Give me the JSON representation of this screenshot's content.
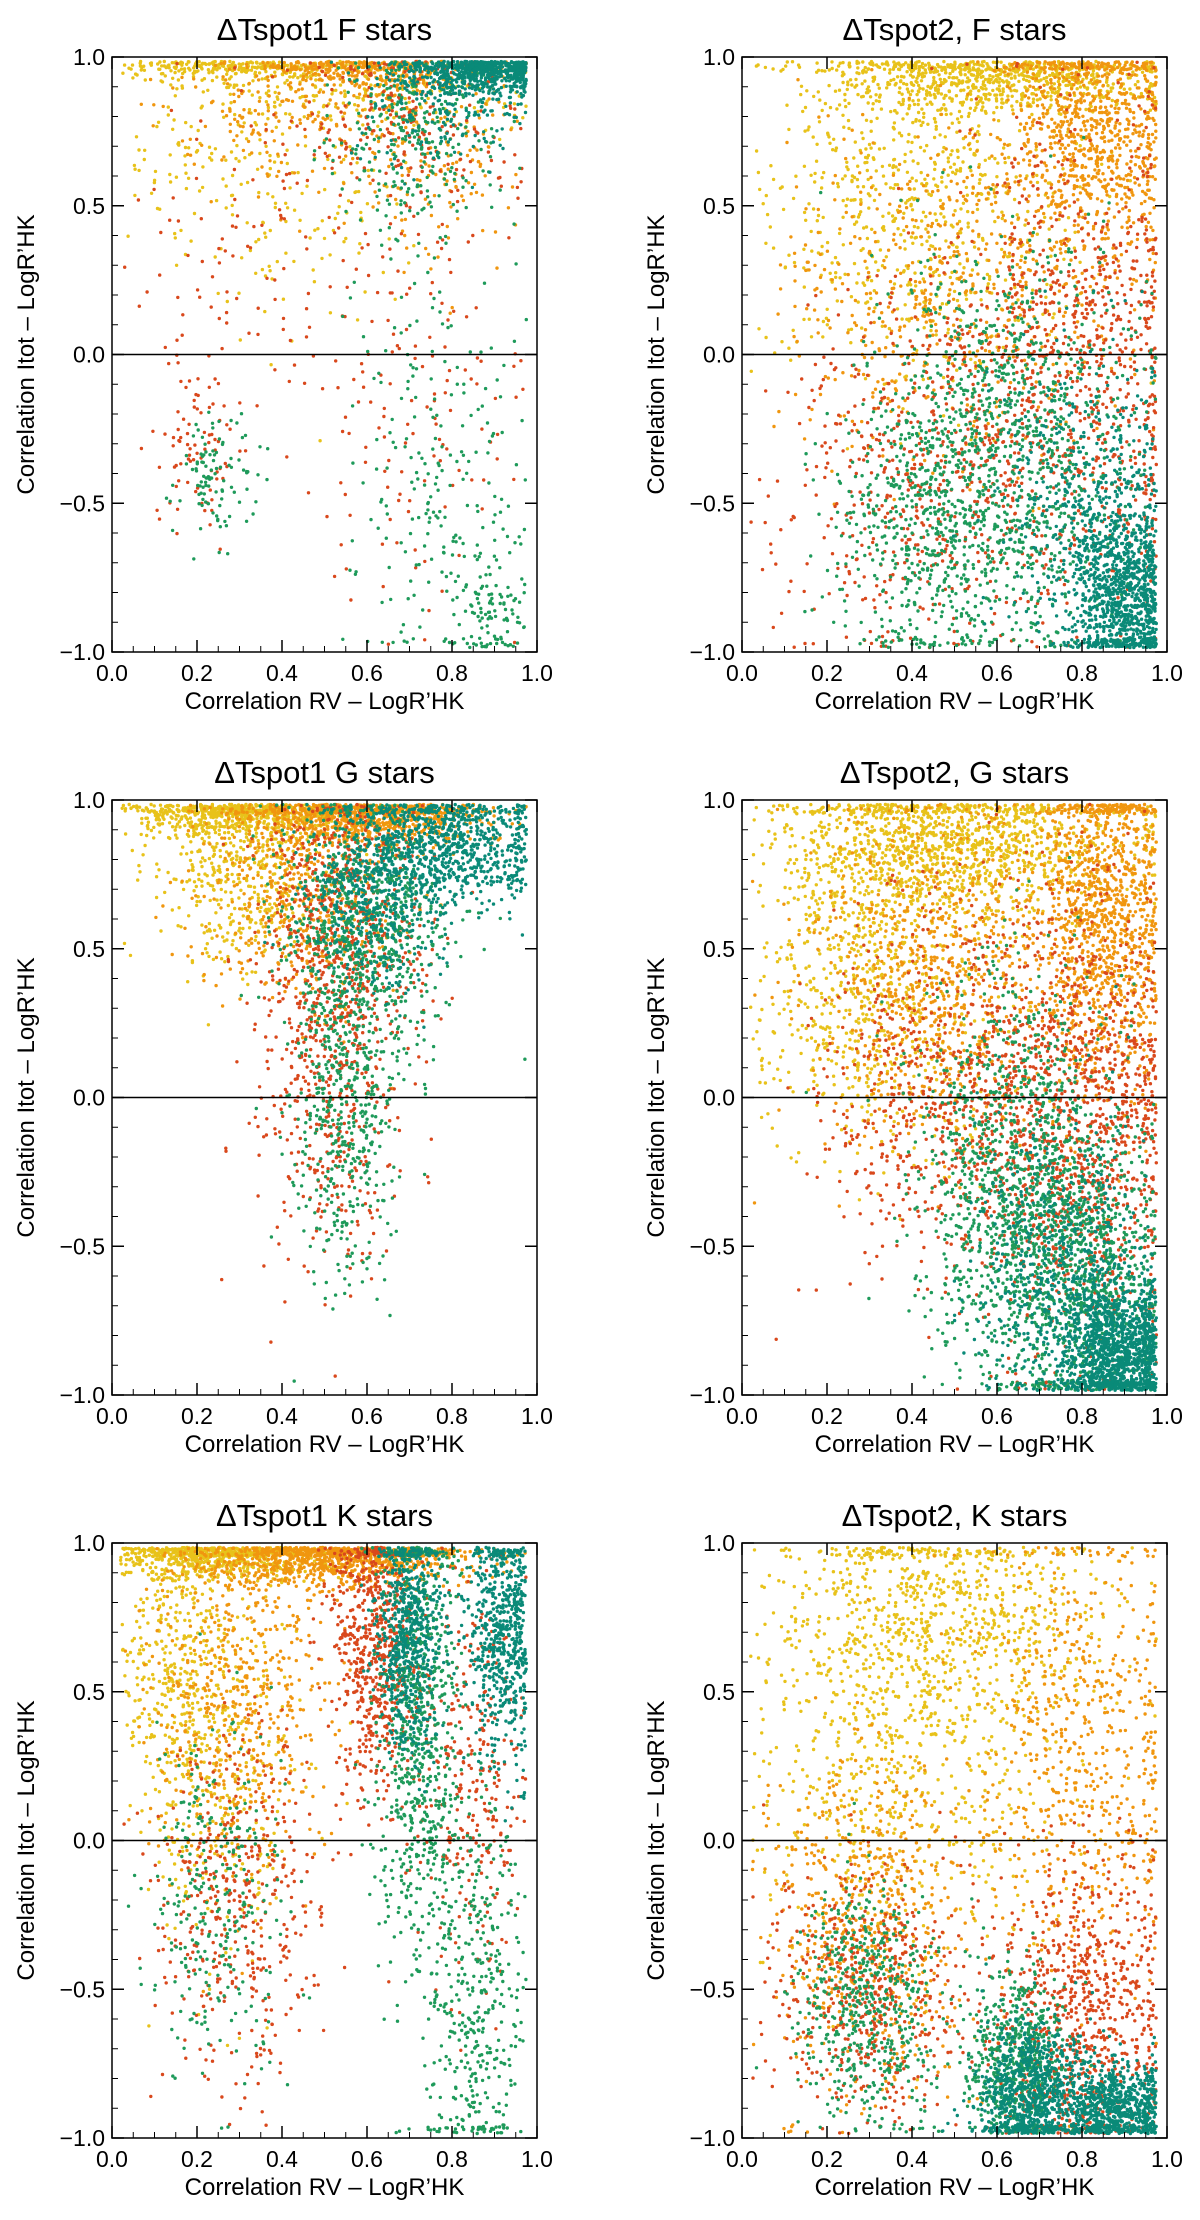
{
  "figure": {
    "description_colors": {
      "yellow": "#e8c21a",
      "orange": "#f0960f",
      "red": "#d9481c",
      "green": "#1e9a5a",
      "teal": "#0a8a78"
    }
  },
  "chart_data": [
    {
      "type": "scatter",
      "title": "ΔTspot1 F stars",
      "xlabel": "Correlation RV – LogR’HK",
      "ylabel": "Correlation Itot – LogR’HK",
      "xlim": [
        0.0,
        1.0
      ],
      "ylim": [
        -1.0,
        1.0
      ],
      "xticks": [
        "0.0",
        "0.2",
        "0.4",
        "0.6",
        "0.8",
        "1.0"
      ],
      "yticks": [
        "1.0",
        "0.5",
        "0.0",
        "−0.5",
        "−1.0"
      ],
      "hline": 0.0,
      "series": [
        {
          "name": "yellow",
          "color": "#e8c21a",
          "n": 700,
          "blobs": [
            [
              0.28,
              0.97,
              0.15,
              0.03,
              0.35
            ],
            [
              0.2,
              0.7,
              0.1,
              0.2,
              0.15
            ],
            [
              0.6,
              0.9,
              0.2,
              0.08,
              0.3
            ],
            [
              0.45,
              0.55,
              0.15,
              0.25,
              0.2
            ]
          ]
        },
        {
          "name": "orange",
          "color": "#f0960f",
          "n": 700,
          "blobs": [
            [
              0.6,
              0.96,
              0.15,
              0.04,
              0.5
            ],
            [
              0.4,
              0.8,
              0.15,
              0.12,
              0.25
            ],
            [
              0.75,
              0.7,
              0.1,
              0.2,
              0.25
            ]
          ]
        },
        {
          "name": "red",
          "color": "#d9481c",
          "n": 550,
          "blobs": [
            [
              0.68,
              0.8,
              0.12,
              0.15,
              0.4
            ],
            [
              0.35,
              0.3,
              0.15,
              0.3,
              0.2
            ],
            [
              0.72,
              -0.1,
              0.12,
              0.35,
              0.25
            ],
            [
              0.2,
              -0.3,
              0.05,
              0.15,
              0.15
            ]
          ]
        },
        {
          "name": "green",
          "color": "#1e9a5a",
          "n": 700,
          "blobs": [
            [
              0.72,
              0.75,
              0.1,
              0.15,
              0.4
            ],
            [
              0.75,
              -0.4,
              0.1,
              0.35,
              0.3
            ],
            [
              0.9,
              -0.85,
              0.05,
              0.12,
              0.15
            ],
            [
              0.25,
              -0.4,
              0.05,
              0.1,
              0.15
            ]
          ]
        },
        {
          "name": "teal",
          "color": "#0a8a78",
          "n": 900,
          "blobs": [
            [
              0.88,
              0.96,
              0.08,
              0.04,
              0.75
            ],
            [
              0.78,
              0.85,
              0.1,
              0.1,
              0.25
            ]
          ]
        }
      ]
    },
    {
      "type": "scatter",
      "title": "ΔTspot2, F stars",
      "xlabel": "Correlation RV – LogR’HK",
      "ylabel": "Correlation Itot – LogR’HK",
      "xlim": [
        0.0,
        1.0
      ],
      "ylim": [
        -1.0,
        1.0
      ],
      "xticks": [
        "0.0",
        "0.2",
        "0.4",
        "0.6",
        "0.8",
        "1.0"
      ],
      "yticks": [
        "1.0",
        "0.5",
        "0.0",
        "−0.5",
        "−1.0"
      ],
      "hline": 0.0,
      "series": [
        {
          "name": "yellow",
          "color": "#e8c21a",
          "n": 1500,
          "blobs": [
            [
              0.6,
              0.93,
              0.2,
              0.06,
              0.5
            ],
            [
              0.4,
              0.5,
              0.18,
              0.3,
              0.5
            ]
          ]
        },
        {
          "name": "orange",
          "color": "#f0960f",
          "n": 1500,
          "blobs": [
            [
              0.82,
              0.75,
              0.1,
              0.22,
              0.6
            ],
            [
              0.5,
              0.2,
              0.2,
              0.3,
              0.4
            ]
          ]
        },
        {
          "name": "red",
          "color": "#d9481c",
          "n": 1400,
          "blobs": [
            [
              0.78,
              0.0,
              0.15,
              0.4,
              0.6
            ],
            [
              0.45,
              -0.4,
              0.18,
              0.3,
              0.4
            ]
          ]
        },
        {
          "name": "green",
          "color": "#1e9a5a",
          "n": 1500,
          "blobs": [
            [
              0.65,
              -0.3,
              0.15,
              0.35,
              0.6
            ],
            [
              0.45,
              -0.55,
              0.12,
              0.25,
              0.4
            ]
          ]
        },
        {
          "name": "teal",
          "color": "#0a8a78",
          "n": 1400,
          "blobs": [
            [
              0.9,
              -0.8,
              0.06,
              0.15,
              0.7
            ],
            [
              0.8,
              -0.5,
              0.1,
              0.25,
              0.3
            ]
          ]
        }
      ]
    },
    {
      "type": "scatter",
      "title": "ΔTspot1 G stars",
      "xlabel": "Correlation RV – LogR’HK",
      "ylabel": "Correlation Itot – LogR’HK",
      "xlim": [
        0.0,
        1.0
      ],
      "ylim": [
        -1.0,
        1.0
      ],
      "xticks": [
        "0.0",
        "0.2",
        "0.4",
        "0.6",
        "0.8",
        "1.0"
      ],
      "yticks": [
        "1.0",
        "0.5",
        "0.0",
        "−0.5",
        "−1.0"
      ],
      "hline": 0.0,
      "series": [
        {
          "name": "yellow",
          "color": "#e8c21a",
          "n": 1100,
          "blobs": [
            [
              0.3,
              0.96,
              0.14,
              0.04,
              0.6
            ],
            [
              0.3,
              0.75,
              0.1,
              0.15,
              0.4
            ]
          ]
        },
        {
          "name": "orange",
          "color": "#f0960f",
          "n": 1300,
          "blobs": [
            [
              0.6,
              0.95,
              0.15,
              0.05,
              0.6
            ],
            [
              0.45,
              0.7,
              0.12,
              0.18,
              0.4
            ]
          ]
        },
        {
          "name": "red",
          "color": "#d9481c",
          "n": 1000,
          "blobs": [
            [
              0.55,
              0.6,
              0.1,
              0.25,
              0.6
            ],
            [
              0.5,
              0.05,
              0.08,
              0.3,
              0.4
            ]
          ]
        },
        {
          "name": "green",
          "color": "#1e9a5a",
          "n": 1200,
          "blobs": [
            [
              0.6,
              0.6,
              0.1,
              0.25,
              0.6
            ],
            [
              0.55,
              0.0,
              0.06,
              0.3,
              0.4
            ]
          ]
        },
        {
          "name": "teal",
          "color": "#0a8a78",
          "n": 1300,
          "blobs": [
            [
              0.78,
              0.85,
              0.12,
              0.1,
              0.7
            ],
            [
              0.62,
              0.65,
              0.08,
              0.15,
              0.3
            ]
          ]
        }
      ]
    },
    {
      "type": "scatter",
      "title": "ΔTspot2, G stars",
      "xlabel": "Correlation RV – LogR’HK",
      "ylabel": "Correlation Itot – LogR’HK",
      "xlim": [
        0.0,
        1.0
      ],
      "ylim": [
        -1.0,
        1.0
      ],
      "xticks": [
        "0.0",
        "0.2",
        "0.4",
        "0.6",
        "0.8",
        "1.0"
      ],
      "yticks": [
        "1.0",
        "0.5",
        "0.0",
        "−0.5",
        "−1.0"
      ],
      "hline": 0.0,
      "series": [
        {
          "name": "yellow",
          "color": "#e8c21a",
          "n": 2000,
          "blobs": [
            [
              0.5,
              0.85,
              0.2,
              0.12,
              0.6
            ],
            [
              0.3,
              0.4,
              0.15,
              0.3,
              0.4
            ]
          ]
        },
        {
          "name": "orange",
          "color": "#f0960f",
          "n": 1900,
          "blobs": [
            [
              0.85,
              0.6,
              0.08,
              0.3,
              0.6
            ],
            [
              0.45,
              0.4,
              0.15,
              0.3,
              0.4
            ]
          ]
        },
        {
          "name": "red",
          "color": "#d9481c",
          "n": 1800,
          "blobs": [
            [
              0.8,
              -0.1,
              0.12,
              0.4,
              0.6
            ],
            [
              0.5,
              0.0,
              0.15,
              0.3,
              0.4
            ]
          ]
        },
        {
          "name": "green",
          "color": "#1e9a5a",
          "n": 1900,
          "blobs": [
            [
              0.65,
              -0.3,
              0.12,
              0.35,
              0.6
            ],
            [
              0.8,
              -0.6,
              0.1,
              0.25,
              0.4
            ]
          ]
        },
        {
          "name": "teal",
          "color": "#0a8a78",
          "n": 1800,
          "blobs": [
            [
              0.88,
              -0.85,
              0.07,
              0.12,
              0.7
            ],
            [
              0.75,
              -0.55,
              0.1,
              0.25,
              0.3
            ]
          ]
        }
      ]
    },
    {
      "type": "scatter",
      "title": "ΔTspot1 K stars",
      "xlabel": "Correlation RV – LogR’HK",
      "ylabel": "Correlation Itot – LogR’HK",
      "xlim": [
        0.0,
        1.0
      ],
      "ylim": [
        -1.0,
        1.0
      ],
      "xticks": [
        "0.0",
        "0.2",
        "0.4",
        "0.6",
        "0.8",
        "1.0"
      ],
      "yticks": [
        "1.0",
        "0.5",
        "0.0",
        "−0.5",
        "−1.0"
      ],
      "hline": 0.0,
      "series": [
        {
          "name": "yellow",
          "color": "#e8c21a",
          "n": 1400,
          "blobs": [
            [
              0.25,
              0.96,
              0.15,
              0.04,
              0.5
            ],
            [
              0.15,
              0.6,
              0.08,
              0.25,
              0.3
            ],
            [
              0.25,
              0.2,
              0.1,
              0.3,
              0.2
            ]
          ]
        },
        {
          "name": "orange",
          "color": "#f0960f",
          "n": 1500,
          "blobs": [
            [
              0.55,
              0.95,
              0.15,
              0.05,
              0.6
            ],
            [
              0.3,
              0.5,
              0.1,
              0.3,
              0.4
            ]
          ]
        },
        {
          "name": "red",
          "color": "#d9481c",
          "n": 1400,
          "blobs": [
            [
              0.62,
              0.65,
              0.05,
              0.25,
              0.5
            ],
            [
              0.3,
              -0.2,
              0.1,
              0.3,
              0.3
            ],
            [
              0.85,
              0.2,
              0.06,
              0.35,
              0.2
            ]
          ]
        },
        {
          "name": "green",
          "color": "#1e9a5a",
          "n": 1400,
          "blobs": [
            [
              0.72,
              0.4,
              0.05,
              0.4,
              0.5
            ],
            [
              0.85,
              -0.5,
              0.06,
              0.35,
              0.3
            ],
            [
              0.25,
              -0.2,
              0.08,
              0.3,
              0.2
            ]
          ]
        },
        {
          "name": "teal",
          "color": "#0a8a78",
          "n": 1300,
          "blobs": [
            [
              0.7,
              0.7,
              0.04,
              0.2,
              0.5
            ],
            [
              0.92,
              0.7,
              0.04,
              0.2,
              0.5
            ]
          ]
        }
      ]
    },
    {
      "type": "scatter",
      "title": "ΔTspot2, K stars",
      "xlabel": "Correlation RV – LogR’HK",
      "ylabel": "Correlation Itot – LogR’HK",
      "xlim": [
        0.0,
        1.0
      ],
      "ylim": [
        -1.0,
        1.0
      ],
      "xticks": [
        "0.0",
        "0.2",
        "0.4",
        "0.6",
        "0.8",
        "1.0"
      ],
      "yticks": [
        "1.0",
        "0.5",
        "0.0",
        "−0.5",
        "−1.0"
      ],
      "hline": 0.0,
      "series": [
        {
          "name": "yellow",
          "color": "#e8c21a",
          "n": 1400,
          "blobs": [
            [
              0.45,
              0.75,
              0.2,
              0.2,
              0.6
            ],
            [
              0.35,
              0.2,
              0.2,
              0.3,
              0.4
            ]
          ]
        },
        {
          "name": "orange",
          "color": "#f0960f",
          "n": 1200,
          "blobs": [
            [
              0.8,
              0.3,
              0.12,
              0.4,
              0.5
            ],
            [
              0.3,
              -0.3,
              0.12,
              0.3,
              0.5
            ]
          ]
        },
        {
          "name": "red",
          "color": "#d9481c",
          "n": 1300,
          "blobs": [
            [
              0.8,
              -0.6,
              0.1,
              0.25,
              0.6
            ],
            [
              0.3,
              -0.5,
              0.12,
              0.2,
              0.4
            ]
          ]
        },
        {
          "name": "green",
          "color": "#1e9a5a",
          "n": 1100,
          "blobs": [
            [
              0.3,
              -0.55,
              0.08,
              0.2,
              0.5
            ],
            [
              0.65,
              -0.75,
              0.06,
              0.15,
              0.5
            ]
          ]
        },
        {
          "name": "teal",
          "color": "#0a8a78",
          "n": 1600,
          "blobs": [
            [
              0.68,
              -0.85,
              0.06,
              0.12,
              0.5
            ],
            [
              0.88,
              -0.9,
              0.06,
              0.08,
              0.5
            ]
          ]
        }
      ]
    }
  ]
}
